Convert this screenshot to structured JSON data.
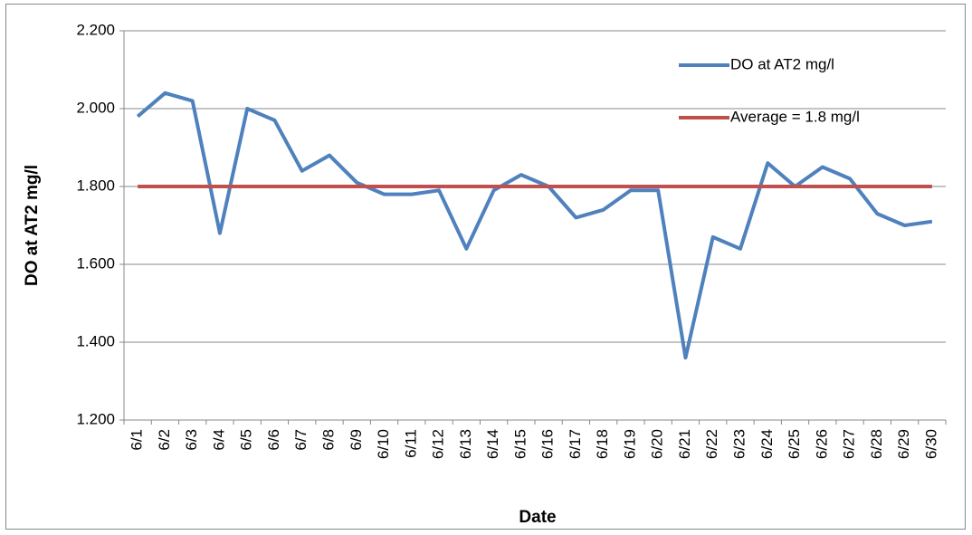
{
  "chart_data": {
    "type": "line",
    "categories": [
      "6/1",
      "6/2",
      "6/3",
      "6/4",
      "6/5",
      "6/6",
      "6/7",
      "6/8",
      "6/9",
      "6/10",
      "6/11",
      "6/12",
      "6/13",
      "6/14",
      "6/15",
      "6/16",
      "6/17",
      "6/18",
      "6/19",
      "6/20",
      "6/21",
      "6/22",
      "6/23",
      "6/24",
      "6/25",
      "6/26",
      "6/27",
      "6/28",
      "6/29",
      "6/30"
    ],
    "series": [
      {
        "name": "DO at AT2 mg/l",
        "color": "#4f81bd",
        "values": [
          1.98,
          2.04,
          2.02,
          1.68,
          2.0,
          1.97,
          1.84,
          1.88,
          1.81,
          1.78,
          1.78,
          1.79,
          1.64,
          1.79,
          1.83,
          1.8,
          1.72,
          1.74,
          1.79,
          1.79,
          1.36,
          1.67,
          1.64,
          1.86,
          1.8,
          1.85,
          1.82,
          1.73,
          1.7,
          1.71
        ]
      },
      {
        "name": "Average = 1.8 mg/l",
        "color": "#c0504d",
        "values": [
          1.8,
          1.8,
          1.8,
          1.8,
          1.8,
          1.8,
          1.8,
          1.8,
          1.8,
          1.8,
          1.8,
          1.8,
          1.8,
          1.8,
          1.8,
          1.8,
          1.8,
          1.8,
          1.8,
          1.8,
          1.8,
          1.8,
          1.8,
          1.8,
          1.8,
          1.8,
          1.8,
          1.8,
          1.8,
          1.8
        ]
      }
    ],
    "x_label": "Date",
    "y_label": "DO at AT2 mg/l",
    "ylim": [
      1.2,
      2.2
    ],
    "yticks": [
      {
        "value": 1.2,
        "label": "1.200"
      },
      {
        "value": 1.4,
        "label": "1.400"
      },
      {
        "value": 1.6,
        "label": "1.600"
      },
      {
        "value": 1.8,
        "label": "1.800"
      },
      {
        "value": 2.0,
        "label": "2.000"
      },
      {
        "value": 2.2,
        "label": "2.200"
      }
    ],
    "grid": true,
    "legend": "top-right"
  }
}
